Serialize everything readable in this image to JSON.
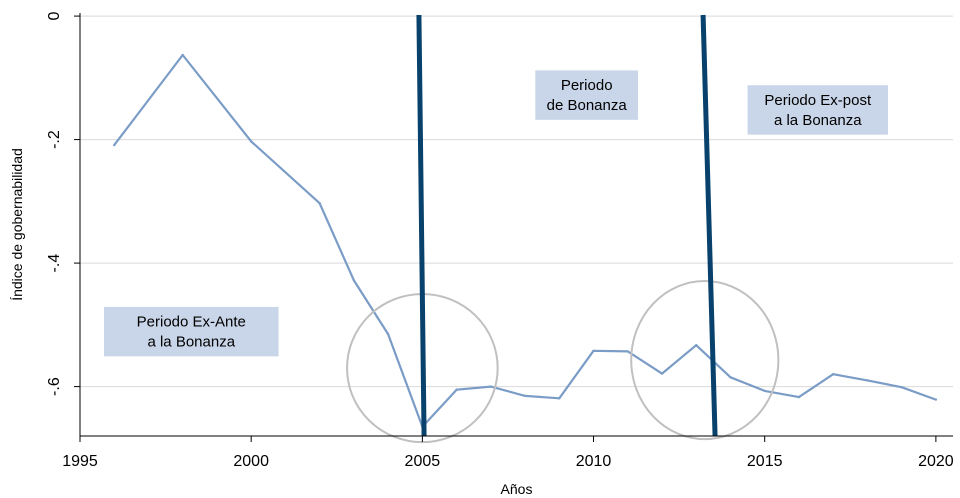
{
  "chart_data": {
    "type": "line",
    "xlabel": "Años",
    "ylabel": "Índice de gobernabilidad",
    "xlim": [
      1995,
      2020.5
    ],
    "ylim": [
      -0.68,
      0.005
    ],
    "x_ticks": [
      1995,
      2000,
      2005,
      2010,
      2015,
      2020
    ],
    "x_tick_labels": [
      "1995",
      "2000",
      "2005",
      "2010",
      "2015",
      "2020"
    ],
    "y_ticks": [
      0,
      -0.2,
      -0.4,
      -0.6
    ],
    "y_tick_labels": [
      "0",
      "-.2",
      "-.4",
      "-.6"
    ],
    "grid": "horizontal",
    "series": [
      {
        "x": [
          1996,
          1998,
          2000,
          2002,
          2003,
          2004,
          2005,
          2006,
          2007,
          2008,
          2009,
          2010,
          2011,
          2012,
          2013,
          2014,
          2015,
          2016,
          2017,
          2018,
          2019,
          2020
        ],
        "y": [
          -0.209,
          -0.063,
          -0.203,
          -0.303,
          -0.428,
          -0.515,
          -0.665,
          -0.605,
          -0.6,
          -0.615,
          -0.619,
          -0.542,
          -0.543,
          -0.579,
          -0.533,
          -0.585,
          -0.607,
          -0.617,
          -0.58,
          -0.59,
          -0.601,
          -0.621
        ],
        "color": "#7a9cc6"
      }
    ],
    "vertical_lines": [
      {
        "x_top": 2004.9,
        "x_bottom": 2005.05,
        "color": "#08416b"
      },
      {
        "x_top": 2013.2,
        "x_bottom": 2013.55,
        "color": "#08416b"
      }
    ],
    "circles": [
      {
        "cx": 2005.0,
        "cy": -0.57,
        "rx": 2.2,
        "ry": 0.12,
        "color": "#c0c0c0"
      },
      {
        "cx": 2013.25,
        "cy": -0.557,
        "rx": 2.15,
        "ry": 0.128,
        "color": "#c0c0c0"
      }
    ],
    "annotations": [
      {
        "lines": [
          "Periodo",
          "de Bonanza"
        ],
        "x0": 2008.3,
        "x1": 2011.3,
        "y0": -0.088,
        "y1": -0.168
      },
      {
        "lines": [
          "Periodo Ex-post",
          "a la Bonanza"
        ],
        "x0": 2014.5,
        "x1": 2018.6,
        "y0": -0.112,
        "y1": -0.192
      },
      {
        "lines": [
          "Periodo Ex-Ante",
          "a la Bonanza"
        ],
        "x0": 1995.7,
        "x1": 2000.8,
        "y0": -0.471,
        "y1": -0.551
      }
    ],
    "annotation_fill": "#c9d5e8",
    "grid_color": "#d9d9d9",
    "axis_color": "#000000"
  }
}
